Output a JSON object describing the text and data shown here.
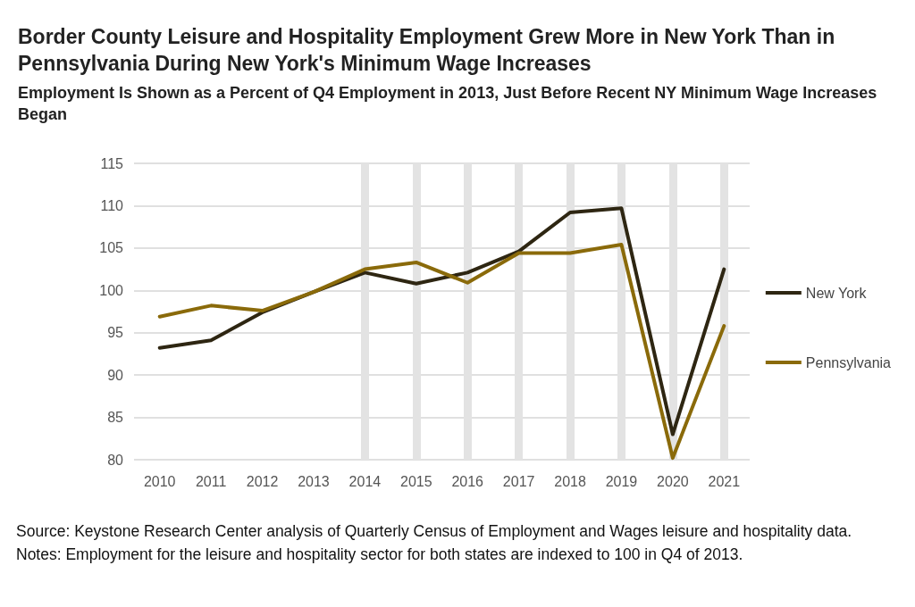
{
  "chart_data": {
    "type": "line",
    "title": "Border County Leisure and Hospitality Employment Grew More in New York Than in Pennsylvania During New York's Minimum Wage Increases",
    "subtitle": "Employment Is Shown as a Percent of Q4 Employment in 2013, Just Before Recent NY Minimum Wage Increases Began",
    "categories": [
      "2010",
      "2011",
      "2012",
      "2013",
      "2014",
      "2015",
      "2016",
      "2017",
      "2018",
      "2019",
      "2020",
      "2021"
    ],
    "series": [
      {
        "name": "New York",
        "color": "#2e2612",
        "values": [
          93.2,
          94.1,
          97.4,
          99.8,
          102.1,
          100.8,
          102.1,
          104.6,
          109.2,
          109.7,
          83.0,
          102.5
        ]
      },
      {
        "name": "Pennsylvania",
        "color": "#8a6a0a",
        "values": [
          96.9,
          98.2,
          97.6,
          99.8,
          102.5,
          103.3,
          100.9,
          104.4,
          104.4,
          105.4,
          80.2,
          95.8
        ]
      }
    ],
    "ylim": [
      80,
      115
    ],
    "yticks": [
      80,
      85,
      90,
      95,
      100,
      105,
      110,
      115
    ],
    "grid": "y",
    "legend": "right",
    "marker": "none",
    "line_style": "solid",
    "ref_lines": [
      {
        "axis": "x",
        "value": "2014",
        "color": "#e3e3e3"
      },
      {
        "axis": "x",
        "value": "2015",
        "color": "#e3e3e3"
      },
      {
        "axis": "x",
        "value": "2016",
        "color": "#e3e3e3"
      },
      {
        "axis": "x",
        "value": "2017",
        "color": "#e3e3e3"
      },
      {
        "axis": "x",
        "value": "2018",
        "color": "#e3e3e3"
      },
      {
        "axis": "x",
        "value": "2019",
        "color": "#e3e3e3"
      },
      {
        "axis": "x",
        "value": "2020",
        "color": "#e3e3e3"
      },
      {
        "axis": "x",
        "value": "2021",
        "color": "#e3e3e3"
      }
    ],
    "annotations": [
      "Source: Keystone Research Center analysis of Quarterly Census of Employment and Wages leisure and hospitality data.",
      "Notes: Employment for the leisure and hospitality sector for both states are indexed to 100 in Q4 of 2013."
    ]
  }
}
